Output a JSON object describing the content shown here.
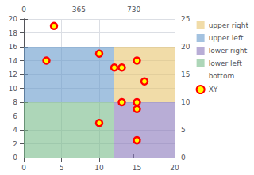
{
  "chart_data": {
    "type": "scatter",
    "x": [
      4,
      3,
      10,
      12,
      13,
      15,
      16,
      13,
      15,
      15,
      10,
      15
    ],
    "y": [
      19,
      14,
      15,
      13,
      13,
      14,
      11,
      8,
      8,
      7,
      5,
      2.5
    ],
    "name": "XY",
    "color": "#ff0000",
    "inner_color": "#ffff00",
    "marker": "circle",
    "regions": [
      {
        "name": "upper right",
        "x": [
          12,
          20
        ],
        "y": [
          8,
          16
        ],
        "color": "#e8c56e"
      },
      {
        "name": "upper left",
        "x": [
          0,
          12
        ],
        "y": [
          8,
          16
        ],
        "color": "#6699cc"
      },
      {
        "name": "lower right",
        "x": [
          12,
          20
        ],
        "y": [
          0,
          8
        ],
        "color": "#8877bb"
      },
      {
        "name": "lower left",
        "x": [
          0,
          12
        ],
        "y": [
          0,
          8
        ],
        "color": "#77bb88"
      },
      {
        "name": "bottom",
        "color": "#ffffff"
      }
    ],
    "xlim": [
      0,
      20
    ],
    "xticks": [
      0,
      5,
      10,
      15,
      20
    ],
    "ylim": [
      0,
      20
    ],
    "yticks": [
      0,
      2,
      4,
      6,
      8,
      10,
      12,
      14,
      16,
      18,
      20
    ],
    "y2lim": [
      0,
      25
    ],
    "y2ticks": [
      0,
      5,
      10,
      15,
      20,
      25
    ],
    "x2lim": [
      0,
      20
    ],
    "x2ticks": [
      {
        "value": 0,
        "label": "0"
      },
      {
        "value": 7.3,
        "label": "365"
      },
      {
        "value": 14.6,
        "label": "730"
      }
    ],
    "grid": true,
    "legend": "right"
  }
}
